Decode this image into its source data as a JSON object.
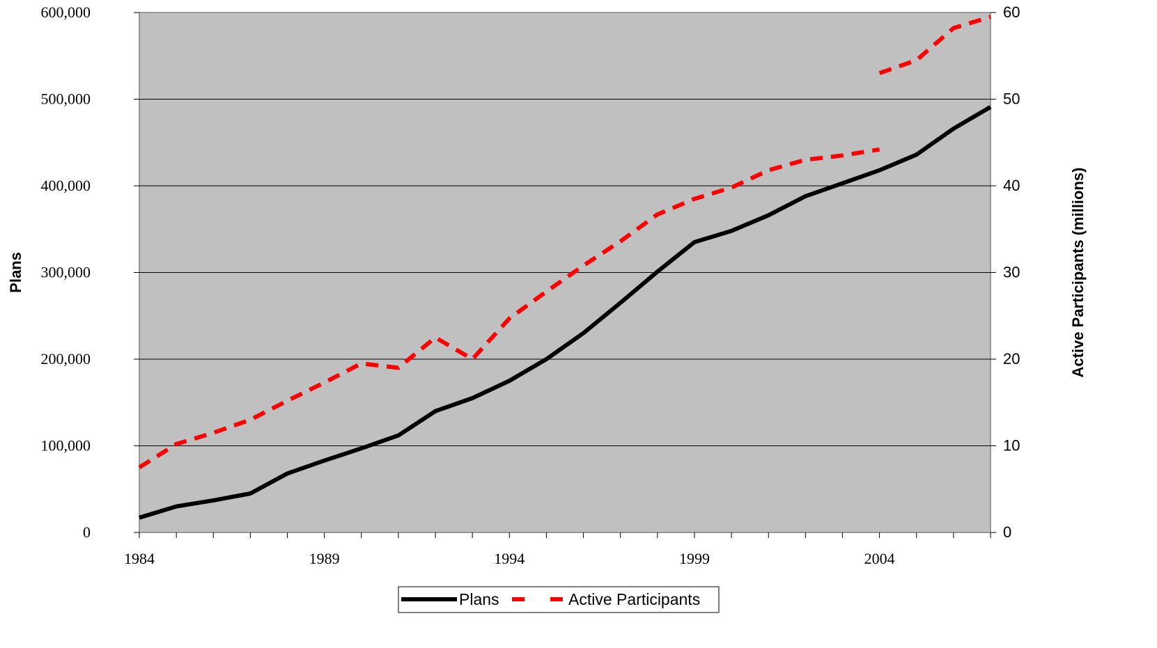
{
  "chart_data": {
    "type": "line",
    "title": "",
    "xlabel": "",
    "ylabel": "Plans",
    "y2label": "Active Participants (millions)",
    "xlim": [
      1984,
      2007
    ],
    "ylim": [
      0,
      600000
    ],
    "y2lim": [
      0,
      60
    ],
    "x_ticks": [
      "1984",
      "1989",
      "1994",
      "1999",
      "2004"
    ],
    "y_ticks": [
      "0",
      "100,000",
      "200,000",
      "300,000",
      "400,000",
      "500,000",
      "600,000"
    ],
    "y2_ticks": [
      "0",
      "10",
      "20",
      "30",
      "40",
      "50",
      "60"
    ],
    "grid": "horizontal",
    "plot_background": "#c0c0c0",
    "legend_position": "bottom",
    "series": [
      {
        "name": "Plans",
        "axis": "left",
        "color": "#000000",
        "style": "solid",
        "points": [
          [
            1984,
            17000
          ],
          [
            1985,
            30000
          ],
          [
            1986,
            37000
          ],
          [
            1987,
            45000
          ],
          [
            1988,
            68000
          ],
          [
            1989,
            83000
          ],
          [
            1990,
            97000
          ],
          [
            1991,
            112000
          ],
          [
            1992,
            140000
          ],
          [
            1993,
            155000
          ],
          [
            1994,
            175000
          ],
          [
            1995,
            200000
          ],
          [
            1996,
            230000
          ],
          [
            1997,
            265000
          ],
          [
            1998,
            301000
          ],
          [
            1999,
            335000
          ],
          [
            2000,
            348000
          ],
          [
            2001,
            366000
          ],
          [
            2002,
            388000
          ],
          [
            2003,
            403000
          ],
          [
            2004,
            418000
          ],
          [
            2005,
            436000
          ],
          [
            2006,
            466000
          ],
          [
            2007,
            491000
          ]
        ]
      },
      {
        "name": "Active Participants",
        "axis": "right",
        "color": "#ff0000",
        "style": "dashed",
        "segments": [
          [
            [
              1984,
              7.5
            ],
            [
              1985,
              10.2
            ],
            [
              1986,
              11.5
            ],
            [
              1987,
              13.0
            ],
            [
              1988,
              15.2
            ],
            [
              1989,
              17.3
            ],
            [
              1990,
              19.5
            ],
            [
              1991,
              19.0
            ],
            [
              1992,
              22.5
            ],
            [
              1993,
              20.0
            ],
            [
              1994,
              24.7
            ],
            [
              1995,
              27.8
            ],
            [
              1996,
              30.8
            ],
            [
              1997,
              33.6
            ],
            [
              1998,
              36.7
            ],
            [
              1999,
              38.5
            ],
            [
              2000,
              39.8
            ],
            [
              2001,
              41.8
            ],
            [
              2002,
              43.0
            ],
            [
              2003,
              43.5
            ],
            [
              2004,
              44.2
            ]
          ],
          [
            [
              2004,
              53.0
            ],
            [
              2005,
              54.5
            ],
            [
              2006,
              58.2
            ],
            [
              2007,
              59.5
            ]
          ]
        ]
      }
    ]
  }
}
